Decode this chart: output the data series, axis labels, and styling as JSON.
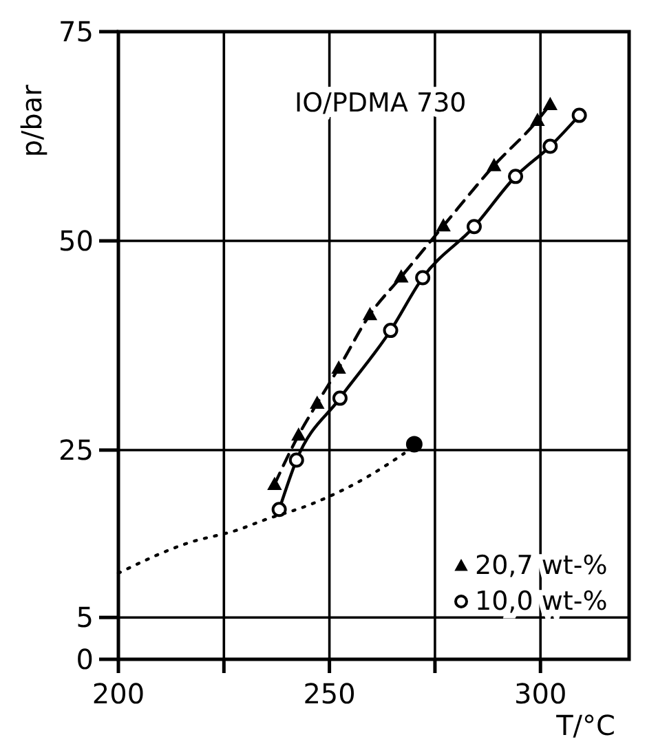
{
  "chart_data": {
    "type": "line",
    "xlabel": "T/°C",
    "ylabel": "p/bar",
    "annotations": [
      "IO/PDMA 730"
    ],
    "xlim": [
      200,
      321
    ],
    "xticks": [
      200,
      {
        "value": 225,
        "label": null
      },
      250,
      {
        "value": 275,
        "label": null
      },
      300
    ],
    "ylim": [
      0,
      75
    ],
    "yticks": [
      0,
      5,
      25,
      50,
      75
    ],
    "grid": true,
    "legend": "bottom right",
    "series": [
      {
        "name": "20,7 wt-%",
        "color": "#000000",
        "line_style": "dashed",
        "marker": "triangle",
        "x": [
          237.0,
          242.7,
          247.1,
          252.2,
          259.6,
          267.0,
          277.0,
          289.0,
          299.3,
          302.3
        ],
        "values": [
          20.9,
          26.8,
          30.6,
          34.8,
          41.2,
          45.7,
          51.8,
          59.0,
          64.4,
          66.3
        ]
      },
      {
        "name": "10,0 wt-%",
        "color": "#000000",
        "line_style": "solid",
        "marker": "circle",
        "x": [
          238.1,
          242.2,
          252.5,
          264.5,
          272.1,
          284.3,
          294.1,
          302.3,
          309.2
        ],
        "values": [
          17.9,
          23.8,
          31.2,
          39.3,
          45.6,
          51.7,
          57.7,
          61.3,
          65.0
        ]
      },
      {
        "color": "#000000",
        "line_style": "dotted",
        "marker": "none",
        "x": [
          200,
          216.5,
          228.5,
          234.3,
          246,
          259,
          267.7
        ],
        "values": [
          10.3,
          13.9,
          15.5,
          16.6,
          18.6,
          21.8,
          24.6
        ]
      },
      {
        "color": "#000000",
        "type": "scatter",
        "marker": "circle",
        "x": [
          270.1
        ],
        "values": [
          25.7
        ]
      }
    ]
  }
}
